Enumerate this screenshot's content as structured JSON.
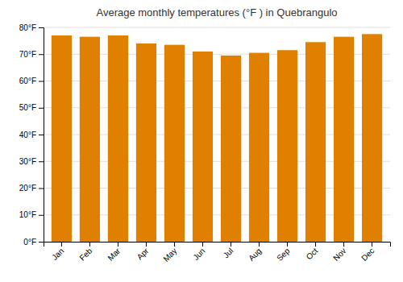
{
  "chart_data": {
    "type": "bar",
    "title": "Average monthly temperatures (°F ) in Quebrangulo",
    "categories": [
      "Jan",
      "Feb",
      "Mar",
      "Apr",
      "May",
      "Jun",
      "Jul",
      "Aug",
      "Sep",
      "Oct",
      "Nov",
      "Dec"
    ],
    "values": [
      77,
      76.5,
      77,
      74,
      73.5,
      71,
      69.5,
      70.5,
      71.5,
      74.5,
      76.5,
      77.5
    ],
    "color": "#E08000",
    "ylim": [
      0,
      80
    ],
    "yticks": [
      {
        "value": 0,
        "label": "0°F"
      },
      {
        "value": 10,
        "label": "10°F"
      },
      {
        "value": 20,
        "label": "20°F"
      },
      {
        "value": 30,
        "label": "30°F"
      },
      {
        "value": 40,
        "label": "40°F"
      },
      {
        "value": 50,
        "label": "50°F"
      },
      {
        "value": 60,
        "label": "60°F"
      },
      {
        "value": 70,
        "label": "70°F"
      },
      {
        "value": 80,
        "label": "80°F"
      }
    ],
    "grid": true
  }
}
